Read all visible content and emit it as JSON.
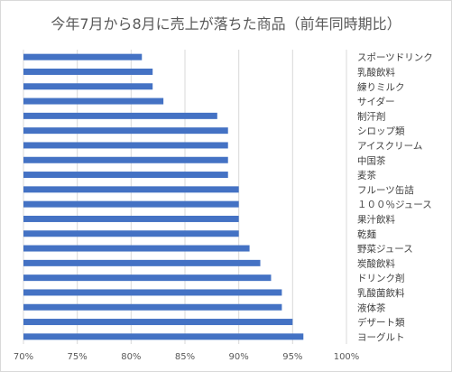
{
  "chart_data": {
    "type": "bar",
    "orientation": "horizontal",
    "title": "今年7月から8月に売上が落ちた商品（前年同時期比）",
    "categories": [
      "スポーツドリンク",
      "乳酸飲料",
      "練りミルク",
      "サイダー",
      "制汗剤",
      "シロップ類",
      "アイスクリーム",
      "中国茶",
      "麦茶",
      "フルーツ缶詰",
      "１００％ジュース",
      "果汁飲料",
      "乾麺",
      "野菜ジュース",
      "炭酸飲料",
      "ドリンク剤",
      "乳酸菌飲料",
      "液体茶",
      "デザート類",
      "ヨーグルト"
    ],
    "values": [
      81,
      82,
      82,
      83,
      88,
      89,
      89,
      89,
      89,
      90,
      90,
      90,
      90,
      91,
      92,
      93,
      94,
      94,
      95,
      96
    ],
    "xlim": [
      70,
      100
    ],
    "xticks": [
      "70%",
      "75%",
      "80%",
      "85%",
      "90%",
      "95%",
      "100%"
    ],
    "xlabel": "",
    "ylabel": "",
    "grid": true,
    "bar_color": "#4472c4",
    "grid_color": "#d9d9d9"
  }
}
